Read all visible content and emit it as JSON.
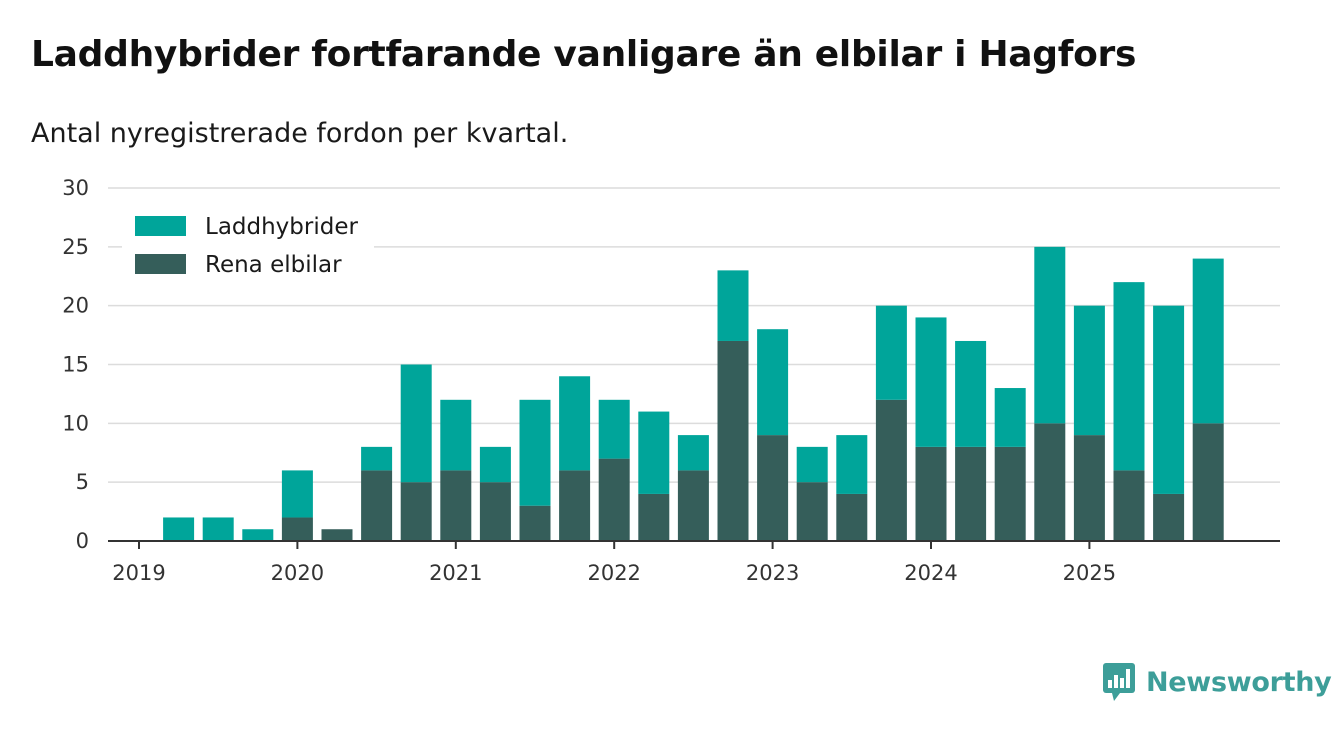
{
  "header": {
    "title": "Laddhybrider fortfarande vanligare än elbilar i Hagfors",
    "subtitle": "Antal nyregistrerade fordon per kvartal."
  },
  "brand": {
    "name": "Newsworthy",
    "color": "#3d9e99"
  },
  "chart_data": {
    "type": "bar",
    "stacked": true,
    "title": "Laddhybrider fortfarande vanligare än elbilar i Hagfors",
    "subtitle": "Antal nyregistrerade fordon per kvartal.",
    "xlabel": "",
    "ylabel": "",
    "ylim": [
      0,
      30
    ],
    "yticks": [
      0,
      5,
      10,
      15,
      20,
      25,
      30
    ],
    "grid": true,
    "legend_position": "top-left",
    "year_ticks": [
      "2019",
      "2020",
      "2021",
      "2022",
      "2023",
      "2024",
      "2025"
    ],
    "categories": [
      "2019 Q1",
      "2019 Q2",
      "2019 Q3",
      "2019 Q4",
      "2020 Q1",
      "2020 Q2",
      "2020 Q3",
      "2020 Q4",
      "2021 Q1",
      "2021 Q2",
      "2021 Q3",
      "2021 Q4",
      "2022 Q1",
      "2022 Q2",
      "2022 Q3",
      "2022 Q4",
      "2023 Q1",
      "2023 Q2",
      "2023 Q3",
      "2023 Q4",
      "2024 Q1",
      "2024 Q2",
      "2024 Q3",
      "2024 Q4",
      "2025 Q1",
      "2025 Q2",
      "2025 Q3",
      "2025 Q4"
    ],
    "series": [
      {
        "name": "Rena elbilar",
        "color": "#355e5a",
        "values": [
          0,
          0,
          0,
          0,
          2,
          1,
          6,
          5,
          6,
          5,
          3,
          6,
          7,
          4,
          6,
          17,
          9,
          5,
          4,
          12,
          8,
          8,
          8,
          10,
          9,
          6,
          4,
          10
        ]
      },
      {
        "name": "Laddhybrider",
        "color": "#00a59a",
        "values": [
          0,
          2,
          2,
          1,
          4,
          0,
          2,
          10,
          6,
          3,
          9,
          8,
          5,
          7,
          3,
          6,
          9,
          3,
          5,
          8,
          11,
          9,
          5,
          15,
          11,
          16,
          16,
          14
        ]
      }
    ]
  }
}
